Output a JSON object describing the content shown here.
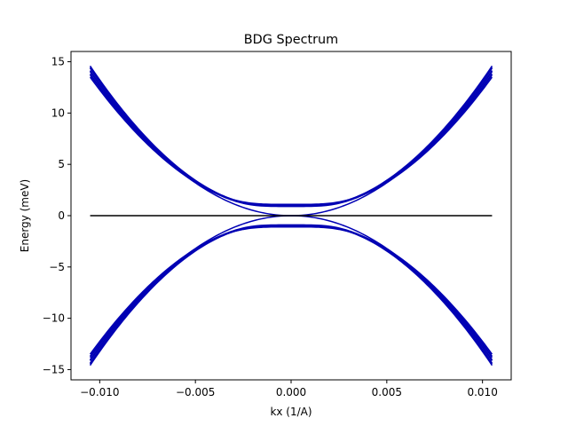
{
  "chart_data": {
    "type": "line",
    "title": "BDG Spectrum",
    "xlabel": "kx (1/A)",
    "ylabel": "Energy (meV)",
    "xlim": [
      -0.0115,
      0.0115
    ],
    "ylim": [
      -16,
      16
    ],
    "xticks": [
      -0.01,
      -0.005,
      0.0,
      0.005,
      0.01
    ],
    "xtick_labels": [
      "−0.010",
      "−0.005",
      "0.000",
      "0.005",
      "0.010"
    ],
    "yticks": [
      -15,
      -10,
      -5,
      0,
      5,
      10,
      15
    ],
    "ytick_labels": [
      "−15",
      "−10",
      "−5",
      "0",
      "5",
      "10",
      "15"
    ],
    "grid": false,
    "legend": false,
    "colors": {
      "bands": "#0000b4",
      "zero_line": "#000000"
    },
    "x_domain": [
      -0.0105,
      0.0105
    ],
    "series": [
      {
        "kind": "band",
        "coef": 128000,
        "gap": 0.0
      },
      {
        "kind": "band",
        "coef": 128000,
        "gap": 0.9
      },
      {
        "kind": "band",
        "coef": 130000,
        "gap": 1.0
      },
      {
        "kind": "band",
        "coef": 127000,
        "gap": 1.0
      },
      {
        "kind": "band",
        "coef": 125000,
        "gap": 1.05
      },
      {
        "kind": "band",
        "coef": 131000,
        "gap": 0.95
      },
      {
        "kind": "band",
        "coef": 122000,
        "gap": 1.1
      },
      {
        "kind": "band",
        "coef": 124000,
        "gap": 1.0
      },
      {
        "kind": "band",
        "coef": 132000,
        "gap": 1.0
      },
      {
        "kind": "flat",
        "x": [
          -0.0105,
          0.0105
        ],
        "y": [
          0,
          0
        ]
      }
    ]
  }
}
